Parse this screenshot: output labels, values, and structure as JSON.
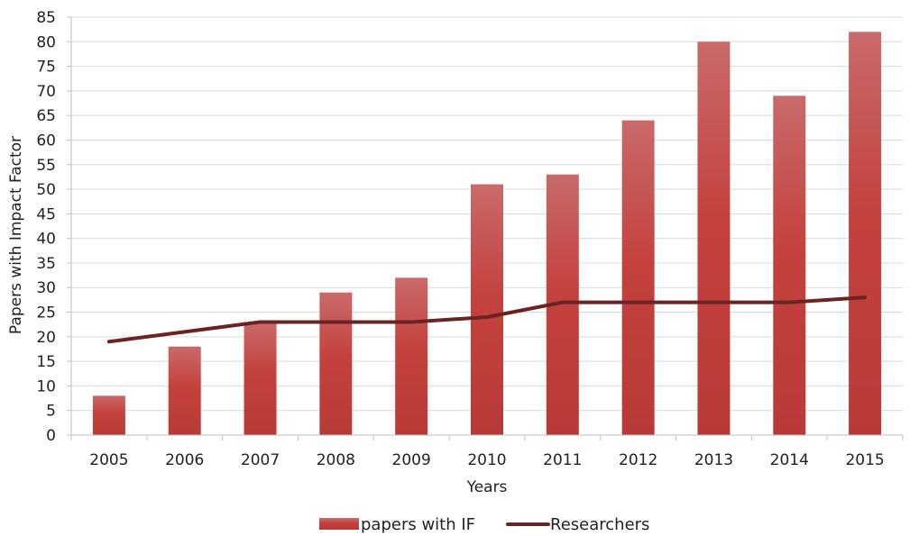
{
  "chart_data": {
    "type": "bar",
    "categories": [
      "2005",
      "2006",
      "2007",
      "2008",
      "2009",
      "2010",
      "2011",
      "2012",
      "2013",
      "2014",
      "2015"
    ],
    "series": [
      {
        "name": "papers with IF",
        "kind": "bar",
        "values": [
          8,
          18,
          23,
          29,
          32,
          51,
          53,
          64,
          80,
          69,
          82
        ]
      },
      {
        "name": "Researchers",
        "kind": "line",
        "values": [
          19,
          21,
          23,
          23,
          23,
          24,
          27,
          27,
          27,
          27,
          28
        ]
      }
    ],
    "title": "",
    "xlabel": "Years",
    "ylabel": "Papers with Impact Factor",
    "ylim": [
      0,
      85
    ],
    "yticks": [
      0,
      5,
      10,
      15,
      20,
      25,
      30,
      35,
      40,
      45,
      50,
      55,
      60,
      65,
      70,
      75,
      80,
      85
    ],
    "grid": true,
    "legend_position": "bottom",
    "colors": {
      "bar_top": "#c96a6a",
      "bar_bottom": "#b83a36",
      "bar_mid": "#c4423d",
      "line": "#6b2424"
    }
  }
}
